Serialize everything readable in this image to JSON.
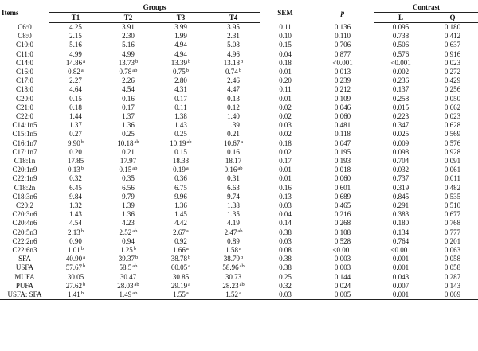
{
  "header": {
    "items": "Items",
    "groups": "Groups",
    "sem": "SEM",
    "p": "p",
    "contrast": "Contrast",
    "t1": "T1",
    "t2": "T2",
    "t3": "T3",
    "t4": "T4",
    "l": "L",
    "q": "Q"
  },
  "rows": [
    {
      "item": "C6:0",
      "t1": "4.25",
      "t1s": "",
      "t2": "3.91",
      "t2s": "",
      "t3": "3.99",
      "t3s": "",
      "t4": "3.95",
      "t4s": "",
      "sem": "0.11",
      "p": "0.136",
      "l": "0.095",
      "q": "0.180"
    },
    {
      "item": "C8:0",
      "t1": "2.15",
      "t1s": "",
      "t2": "2.30",
      "t2s": "",
      "t3": "1.99",
      "t3s": "",
      "t4": "2.31",
      "t4s": "",
      "sem": "0.10",
      "p": "0.110",
      "l": "0.738",
      "q": "0.412"
    },
    {
      "item": "C10:0",
      "t1": "5.16",
      "t1s": "",
      "t2": "5.16",
      "t2s": "",
      "t3": "4.94",
      "t3s": "",
      "t4": "5.08",
      "t4s": "",
      "sem": "0.15",
      "p": "0.706",
      "l": "0.506",
      "q": "0.637"
    },
    {
      "item": "C11:0",
      "t1": "4.99",
      "t1s": "",
      "t2": "4.99",
      "t2s": "",
      "t3": "4.94",
      "t3s": "",
      "t4": "4.96",
      "t4s": "",
      "sem": "0.04",
      "p": "0.877",
      "l": "0.576",
      "q": "0.916"
    },
    {
      "item": "C14:0",
      "t1": "14.86",
      "t1s": "a",
      "t2": "13.73",
      "t2s": "b",
      "t3": "13.39",
      "t3s": "b",
      "t4": "13.18",
      "t4s": "b",
      "sem": "0.18",
      "p": "<0.001",
      "l": "<0.001",
      "q": "0.023"
    },
    {
      "item": "C16:0",
      "t1": "0.82",
      "t1s": "a",
      "t2": "0.78",
      "t2s": "ab",
      "t3": "0.75",
      "t3s": "b",
      "t4": "0.74",
      "t4s": "b",
      "sem": "0.01",
      "p": "0.013",
      "l": "0.002",
      "q": "0.272"
    },
    {
      "item": "C17:0",
      "t1": "2.27",
      "t1s": "",
      "t2": "2.26",
      "t2s": "",
      "t3": "2.80",
      "t3s": "",
      "t4": "2.46",
      "t4s": "",
      "sem": "0.20",
      "p": "0.239",
      "l": "0.236",
      "q": "0.429"
    },
    {
      "item": "C18:0",
      "t1": "4.64",
      "t1s": "",
      "t2": "4.54",
      "t2s": "",
      "t3": "4.31",
      "t3s": "",
      "t4": "4.47",
      "t4s": "",
      "sem": "0.11",
      "p": "0.212",
      "l": "0.137",
      "q": "0.256"
    },
    {
      "item": "C20:0",
      "t1": "0.15",
      "t1s": "",
      "t2": "0.16",
      "t2s": "",
      "t3": "0.17",
      "t3s": "",
      "t4": "0.13",
      "t4s": "",
      "sem": "0.01",
      "p": "0.109",
      "l": "0.258",
      "q": "0.050"
    },
    {
      "item": "C21:0",
      "t1": "0.18",
      "t1s": "",
      "t2": "0.17",
      "t2s": "",
      "t3": "0.11",
      "t3s": "",
      "t4": "0.12",
      "t4s": "",
      "sem": "0.02",
      "p": "0.046",
      "l": "0.015",
      "q": "0.662"
    },
    {
      "item": "C22:0",
      "t1": "1.44",
      "t1s": "",
      "t2": "1.37",
      "t2s": "",
      "t3": "1.38",
      "t3s": "",
      "t4": "1.40",
      "t4s": "",
      "sem": "0.02",
      "p": "0.060",
      "l": "0.223",
      "q": "0.023"
    },
    {
      "item": "C14:1n5",
      "t1": "1.37",
      "t1s": "",
      "t2": "1.36",
      "t2s": "",
      "t3": "1.43",
      "t3s": "",
      "t4": "1.39",
      "t4s": "",
      "sem": "0.03",
      "p": "0.481",
      "l": "0.347",
      "q": "0.628"
    },
    {
      "item": "C15:1n5",
      "t1": "0.27",
      "t1s": "",
      "t2": "0.25",
      "t2s": "",
      "t3": "0.25",
      "t3s": "",
      "t4": "0.21",
      "t4s": "",
      "sem": "0.02",
      "p": "0.118",
      "l": "0.025",
      "q": "0.569"
    },
    {
      "item": "C16:1n7",
      "t1": "9.90",
      "t1s": "b",
      "t2": "10.18",
      "t2s": "ab",
      "t3": "10.19",
      "t3s": "ab",
      "t4": "10.67",
      "t4s": "a",
      "sem": "0.18",
      "p": "0.047",
      "l": "0.009",
      "q": "0.576"
    },
    {
      "item": "C17:1n7",
      "t1": "0.20",
      "t1s": "",
      "t2": "0.21",
      "t2s": "",
      "t3": "0.15",
      "t3s": "",
      "t4": "0.16",
      "t4s": "",
      "sem": "0.02",
      "p": "0.195",
      "l": "0.098",
      "q": "0.928"
    },
    {
      "item": "C18:1n",
      "t1": "17.85",
      "t1s": "",
      "t2": "17.97",
      "t2s": "",
      "t3": "18.33",
      "t3s": "",
      "t4": "18.17",
      "t4s": "",
      "sem": "0.17",
      "p": "0.193",
      "l": "0.704",
      "q": "0.091"
    },
    {
      "item": "C20:1n9",
      "t1": "0.13",
      "t1s": "b",
      "t2": "0.15",
      "t2s": "ab",
      "t3": "0.19",
      "t3s": "a",
      "t4": "0.16",
      "t4s": "ab",
      "sem": "0.01",
      "p": "0.018",
      "l": "0.032",
      "q": "0.061"
    },
    {
      "item": "C22:1n9",
      "t1": "0.32",
      "t1s": "",
      "t2": "0.35",
      "t2s": "",
      "t3": "0.36",
      "t3s": "",
      "t4": "0.31",
      "t4s": "",
      "sem": "0.01",
      "p": "0.060",
      "l": "0.737",
      "q": "0.011"
    },
    {
      "item": "C18:2n",
      "t1": "6.45",
      "t1s": "",
      "t2": "6.56",
      "t2s": "",
      "t3": "6.75",
      "t3s": "",
      "t4": "6.63",
      "t4s": "",
      "sem": "0.16",
      "p": "0.601",
      "l": "0.319",
      "q": "0.482"
    },
    {
      "item": "C18:3n6",
      "t1": "9.84",
      "t1s": "",
      "t2": "9.79",
      "t2s": "",
      "t3": "9.96",
      "t3s": "",
      "t4": "9.74",
      "t4s": "",
      "sem": "0.13",
      "p": "0.689",
      "l": "0.845",
      "q": "0.535"
    },
    {
      "item": "C20:2",
      "t1": "1.32",
      "t1s": "",
      "t2": "1.39",
      "t2s": "",
      "t3": "1.36",
      "t3s": "",
      "t4": "1.38",
      "t4s": "",
      "sem": "0.03",
      "p": "0.465",
      "l": "0.291",
      "q": "0.510"
    },
    {
      "item": "C20:3n6",
      "t1": "1.43",
      "t1s": "",
      "t2": "1.36",
      "t2s": "",
      "t3": "1.45",
      "t3s": "",
      "t4": "1.35",
      "t4s": "",
      "sem": "0.04",
      "p": "0.216",
      "l": "0.383",
      "q": "0.677"
    },
    {
      "item": "C20:4n6",
      "t1": "4.54",
      "t1s": "",
      "t2": "4.23",
      "t2s": "",
      "t3": "4.42",
      "t3s": "",
      "t4": "4.19",
      "t4s": "",
      "sem": "0.14",
      "p": "0.268",
      "l": "0.180",
      "q": "0.768"
    },
    {
      "item": "C20:5n3",
      "t1": "2.13",
      "t1s": "b",
      "t2": "2.52",
      "t2s": "ab",
      "t3": "2.67",
      "t3s": "a",
      "t4": "2.47",
      "t4s": "ab",
      "sem": "0.38",
      "p": "0.108",
      "l": "0.134",
      "q": "0.777"
    },
    {
      "item": "C22:2n6",
      "t1": "0.90",
      "t1s": "",
      "t2": "0.94",
      "t2s": "",
      "t3": "0.92",
      "t3s": "",
      "t4": "0.89",
      "t4s": "",
      "sem": "0.03",
      "p": "0.528",
      "l": "0.764",
      "q": "0.201"
    },
    {
      "item": "C22:6n3",
      "t1": "1.01",
      "t1s": "b",
      "t2": "1.25",
      "t2s": "b",
      "t3": "1.66",
      "t3s": "a",
      "t4": "1.58",
      "t4s": "a",
      "sem": "0.08",
      "p": "<0.001",
      "l": "<0.001",
      "q": "0.063"
    },
    {
      "item": "SFA",
      "t1": "40.90",
      "t1s": "a",
      "t2": "39.37",
      "t2s": "b",
      "t3": "38.78",
      "t3s": "b",
      "t4": "38.79",
      "t4s": "b",
      "sem": "0.38",
      "p": "0.003",
      "l": "0.001",
      "q": "0.058"
    },
    {
      "item": "USFA",
      "t1": "57.67",
      "t1s": "b",
      "t2": "58.5",
      "t2s": "ab",
      "t3": "60.05",
      "t3s": "a",
      "t4": "58.96",
      "t4s": "ab",
      "sem": "0.38",
      "p": "0.003",
      "l": "0.001",
      "q": "0.058"
    },
    {
      "item": "MUFA",
      "t1": "30.05",
      "t1s": "",
      "t2": "30.47",
      "t2s": "",
      "t3": "30.85",
      "t3s": "",
      "t4": "30.73",
      "t4s": "",
      "sem": "0.25",
      "p": "0.144",
      "l": "0.043",
      "q": "0.287"
    },
    {
      "item": "PUFA",
      "t1": "27.62",
      "t1s": "b",
      "t2": "28.03",
      "t2s": "ab",
      "t3": "29.19",
      "t3s": "a",
      "t4": "28.23",
      "t4s": "ab",
      "sem": "0.32",
      "p": "0.024",
      "l": "0.007",
      "q": "0.143"
    },
    {
      "item": "USFA: SFA",
      "t1": "1.41",
      "t1s": "b",
      "t2": "1.49",
      "t2s": "ab",
      "t3": "1.55",
      "t3s": "a",
      "t4": "1.52",
      "t4s": "a",
      "sem": "0.03",
      "p": "0.005",
      "l": "0.001",
      "q": "0.069"
    }
  ]
}
